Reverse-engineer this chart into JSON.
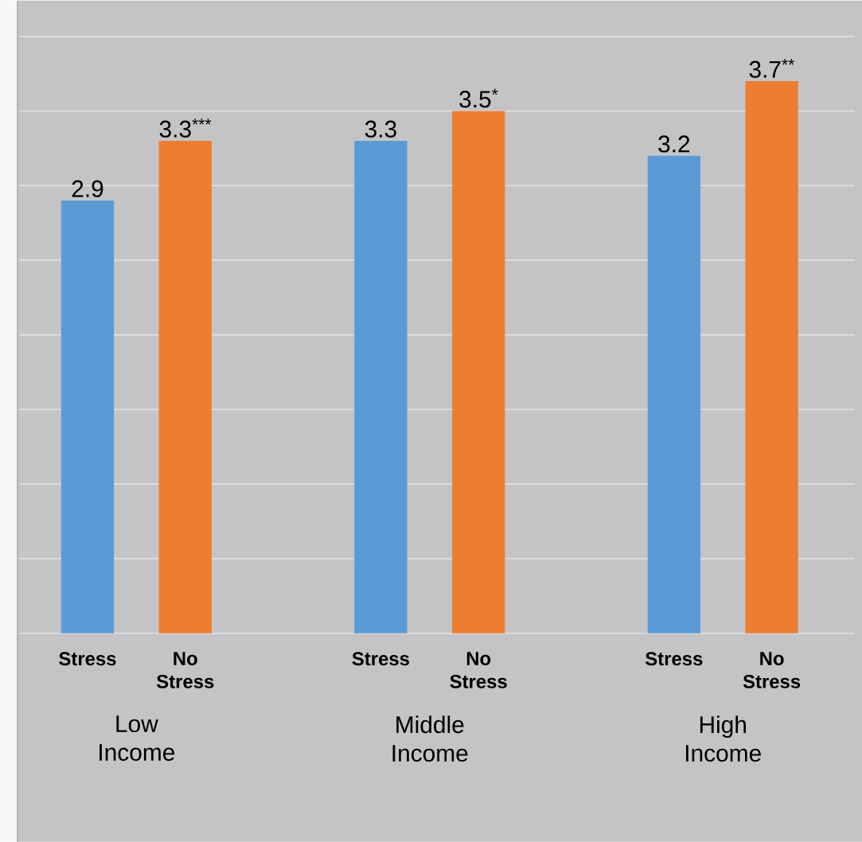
{
  "chart_data": {
    "type": "bar",
    "categories": [
      "Low Income",
      "Middle Income",
      "High Income"
    ],
    "series": [
      {
        "name": "Stress",
        "color": "#5b9bd5",
        "values": [
          2.9,
          3.3,
          3.2
        ],
        "value_labels": [
          "2.9",
          "3.3",
          "3.2"
        ]
      },
      {
        "name": "No Stress",
        "color": "#ed7d31",
        "values": [
          3.3,
          3.5,
          3.7
        ],
        "value_labels": [
          "3.3$^{***}$",
          "3.5$^{*}$",
          "3.7$^{**}$"
        ]
      }
    ],
    "ylim": [
      0,
      4
    ],
    "yticks": [
      {
        "value": 0,
        "label": null
      },
      {
        "value": 0.5,
        "label": null
      },
      {
        "value": 1,
        "label": null
      },
      {
        "value": 1.5,
        "label": null
      },
      {
        "value": 2,
        "label": null
      },
      {
        "value": 2.5,
        "label": null
      },
      {
        "value": 3,
        "label": null
      },
      {
        "value": 3.5,
        "label": null
      },
      {
        "value": 4,
        "label": null
      }
    ],
    "grid": "y",
    "tick_labels": "x"
  }
}
